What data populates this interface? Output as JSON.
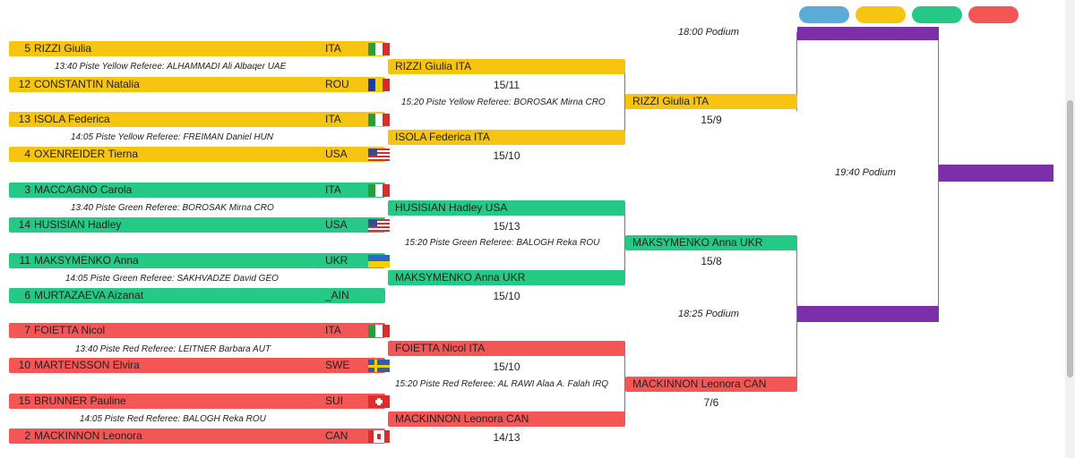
{
  "colors": {
    "yellow": "#f7c412",
    "green": "#25c985",
    "red": "#f45656",
    "blue": "#5aacd6",
    "purple": "#7b2fa8"
  },
  "legend": [
    "blue",
    "yellow",
    "green",
    "red"
  ],
  "round1": [
    {
      "seed": "5",
      "name": "RIZZI Giulia",
      "country": "ITA",
      "flag": "italy-flag-icon"
    },
    {
      "seed": "12",
      "name": "CONSTANTIN Natalia",
      "country": "ROU",
      "flag": "romania-flag-icon"
    },
    {
      "seed": "13",
      "name": "ISOLA Federica",
      "country": "ITA",
      "flag": "italy-flag-icon"
    },
    {
      "seed": "4",
      "name": "OXENREIDER Tierna",
      "country": "USA",
      "flag": "usa-flag-icon"
    },
    {
      "seed": "3",
      "name": "MACCAGNO Carola",
      "country": "ITA",
      "flag": "italy-flag-icon"
    },
    {
      "seed": "14",
      "name": "HUSISIAN Hadley",
      "country": "USA",
      "flag": "usa-flag-icon"
    },
    {
      "seed": "11",
      "name": "MAKSYMENKO Anna",
      "country": "UKR",
      "flag": "ukraine-flag-icon"
    },
    {
      "seed": "6",
      "name": "MURTAZAEVA Aizanat",
      "country": "_AIN",
      "flag": ""
    },
    {
      "seed": "7",
      "name": "FOIETTA Nicol",
      "country": "ITA",
      "flag": "italy-flag-icon"
    },
    {
      "seed": "10",
      "name": "MARTENSSON Elvira",
      "country": "SWE",
      "flag": "sweden-flag-icon"
    },
    {
      "seed": "15",
      "name": "BRUNNER Pauline",
      "country": "SUI",
      "flag": "switzerland-flag-icon"
    },
    {
      "seed": "2",
      "name": "MACKINNON Leonora",
      "country": "CAN",
      "flag": "canada-flag-icon"
    }
  ],
  "round1_notes": [
    "13:40 Piste Yellow Referee: ALHAMMADI Ali Albaqer UAE",
    "14:05 Piste Yellow Referee: FREIMAN Daniel HUN",
    "13:40 Piste Green Referee: BOROSAK Mirna CRO",
    "14:05 Piste Green Referee: SAKHVADZE David GEO",
    "13:40 Piste Red Referee: LEITNER Barbara AUT",
    "14:05 Piste Red Referee: BALOGH Reka ROU"
  ],
  "quarterfinals": [
    {
      "winner": "RIZZI Giulia ITA",
      "score": "15/11"
    },
    {
      "winner": "ISOLA Federica ITA",
      "score": "15/10"
    },
    {
      "winner": "HUSISIAN Hadley USA",
      "score": "15/13"
    },
    {
      "winner": "MAKSYMENKO Anna UKR",
      "score": "15/10"
    },
    {
      "winner": "FOIETTA Nicol ITA",
      "score": "15/10"
    },
    {
      "winner": "MACKINNON Leonora CAN",
      "score": "14/13"
    }
  ],
  "quarter_notes": [
    "15:20 Piste Yellow Referee: BOROSAK Mirna CRO",
    "15:20 Piste Green Referee: BALOGH Reka ROU",
    "15:20 Piste Red Referee: AL RAWI Alaa A. Falah IRQ"
  ],
  "semifinal_entries": [
    {
      "winner": "RIZZI Giulia ITA",
      "score": "15/9"
    },
    {
      "winner": "MAKSYMENKO Anna UKR",
      "score": "15/8"
    },
    {
      "winner": "MACKINNON Leonora CAN",
      "score": "7/6"
    }
  ],
  "podium": {
    "top": "18:00 Podium",
    "middle": "18:25 Podium",
    "final": "19:40 Podium"
  }
}
